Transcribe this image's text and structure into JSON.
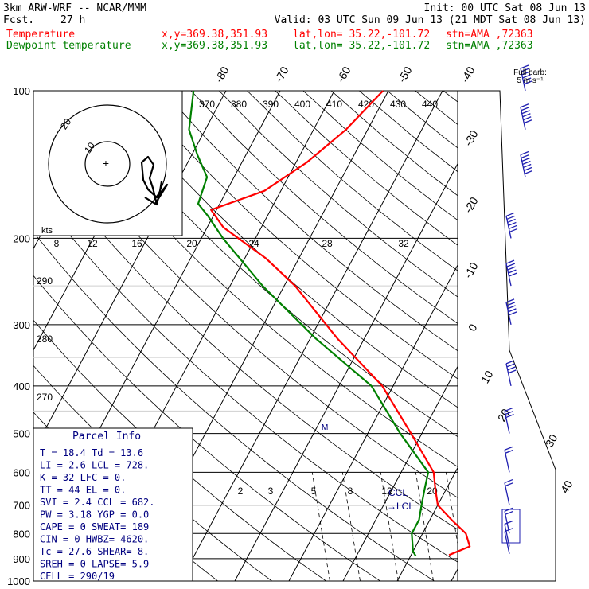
{
  "header": {
    "model": "3km ARW-WRF -- NCAR/MMM",
    "init": "Init: 00 UTC Sat 08 Jun 13",
    "fcst_label": "Fcst.",
    "fcst_hours": "27 h",
    "valid": "Valid: 03 UTC Sun 09 Jun 13 (21 MDT Sat 08 Jun 13)",
    "temp_name": "Temperature",
    "dew_name": "Dewpoint temperature",
    "xy": "x,y=369.38,351.93",
    "latlon": "lat,lon= 35.22,-101.72",
    "stn": "stn=AMA ,72363"
  },
  "colors": {
    "temp": "#ff0000",
    "dew": "#008000",
    "grid": "#000000",
    "navy": "#000080",
    "blue": "#1f1fb0"
  },
  "full_barb": "Full barb:",
  "full_barb_speed": "5 m s⁻¹",
  "hodograph": {
    "units_label": "kts",
    "ring_labels": [
      "10",
      "20"
    ]
  },
  "parcel": {
    "title": "Parcel Info",
    "rows": [
      "T  =   18.4  Td =  13.6",
      "LI =    2.6  LCL =  728.",
      "K  =     32  LFC =    0.",
      "TT =     44  EL  =    0.",
      "SVI =   2.4  CCL =  682.",
      "PW =   3.18  YGP =   0.0",
      "CAPE =    0  SWEAT=  189",
      "CIN  =    0  HWBZ= 4620.",
      "Tc =   27.6  SHEAR=   8.",
      "SREH =    0  LAPSE=  5.9",
      "CELL = 290/19"
    ]
  },
  "markers": {
    "ccl": "CCL",
    "lcl": "LCL"
  },
  "chart_data": {
    "type": "line",
    "y_axis": {
      "label": "",
      "scale": "log",
      "range": [
        1000,
        100
      ],
      "ticks": [
        100,
        200,
        300,
        400,
        500,
        600,
        700,
        800,
        900,
        1000
      ]
    },
    "isotherm_labels": [
      -80,
      -70,
      -60,
      -50,
      -40,
      -30,
      -20,
      -10,
      0,
      10,
      20,
      30,
      40
    ],
    "mixing_ratio_labels": [
      2,
      3,
      5,
      8,
      12,
      20
    ],
    "theta_labels": [
      370,
      380,
      390,
      400,
      410,
      420,
      430,
      440
    ],
    "theta_left_labels": [
      290,
      280,
      270
    ],
    "hodo_speed_labels": [
      8,
      12,
      16,
      20,
      24,
      28,
      32
    ],
    "series": [
      {
        "name": "Temperature",
        "points": [
          [
            885,
            17
          ],
          [
            850,
            20
          ],
          [
            800,
            18
          ],
          [
            750,
            14
          ],
          [
            700,
            10
          ],
          [
            650,
            8
          ],
          [
            600,
            6
          ],
          [
            500,
            -2
          ],
          [
            400,
            -12
          ],
          [
            320,
            -25
          ],
          [
            250,
            -38
          ],
          [
            220,
            -46
          ],
          [
            190,
            -57
          ],
          [
            175,
            -61
          ],
          [
            160,
            -53
          ],
          [
            140,
            -48
          ],
          [
            120,
            -44
          ],
          [
            100,
            -41
          ]
        ]
      },
      {
        "name": "Dewpoint temperature",
        "points": [
          [
            890,
            11
          ],
          [
            870,
            10
          ],
          [
            800,
            8
          ],
          [
            750,
            8
          ],
          [
            700,
            7
          ],
          [
            650,
            6
          ],
          [
            600,
            5
          ],
          [
            500,
            -4
          ],
          [
            400,
            -14
          ],
          [
            320,
            -29
          ],
          [
            250,
            -44
          ],
          [
            200,
            -56
          ],
          [
            180,
            -61
          ],
          [
            170,
            -64
          ],
          [
            150,
            -65
          ],
          [
            135,
            -69
          ],
          [
            120,
            -73
          ],
          [
            100,
            -76
          ]
        ]
      }
    ],
    "wind_barbs": [
      {
        "p": 880,
        "speed_ms": 5
      },
      {
        "p": 850,
        "speed_ms": 5
      },
      {
        "p": 800,
        "speed_ms": 10
      },
      {
        "p": 700,
        "speed_ms": 10
      },
      {
        "p": 600,
        "speed_ms": 10
      },
      {
        "p": 500,
        "speed_ms": 15
      },
      {
        "p": 400,
        "speed_ms": 20
      },
      {
        "p": 300,
        "speed_ms": 25
      },
      {
        "p": 250,
        "speed_ms": 25
      },
      {
        "p": 200,
        "speed_ms": 30
      },
      {
        "p": 150,
        "speed_ms": 35
      },
      {
        "p": 120,
        "speed_ms": 30
      },
      {
        "p": 100,
        "speed_ms": 30
      }
    ]
  }
}
